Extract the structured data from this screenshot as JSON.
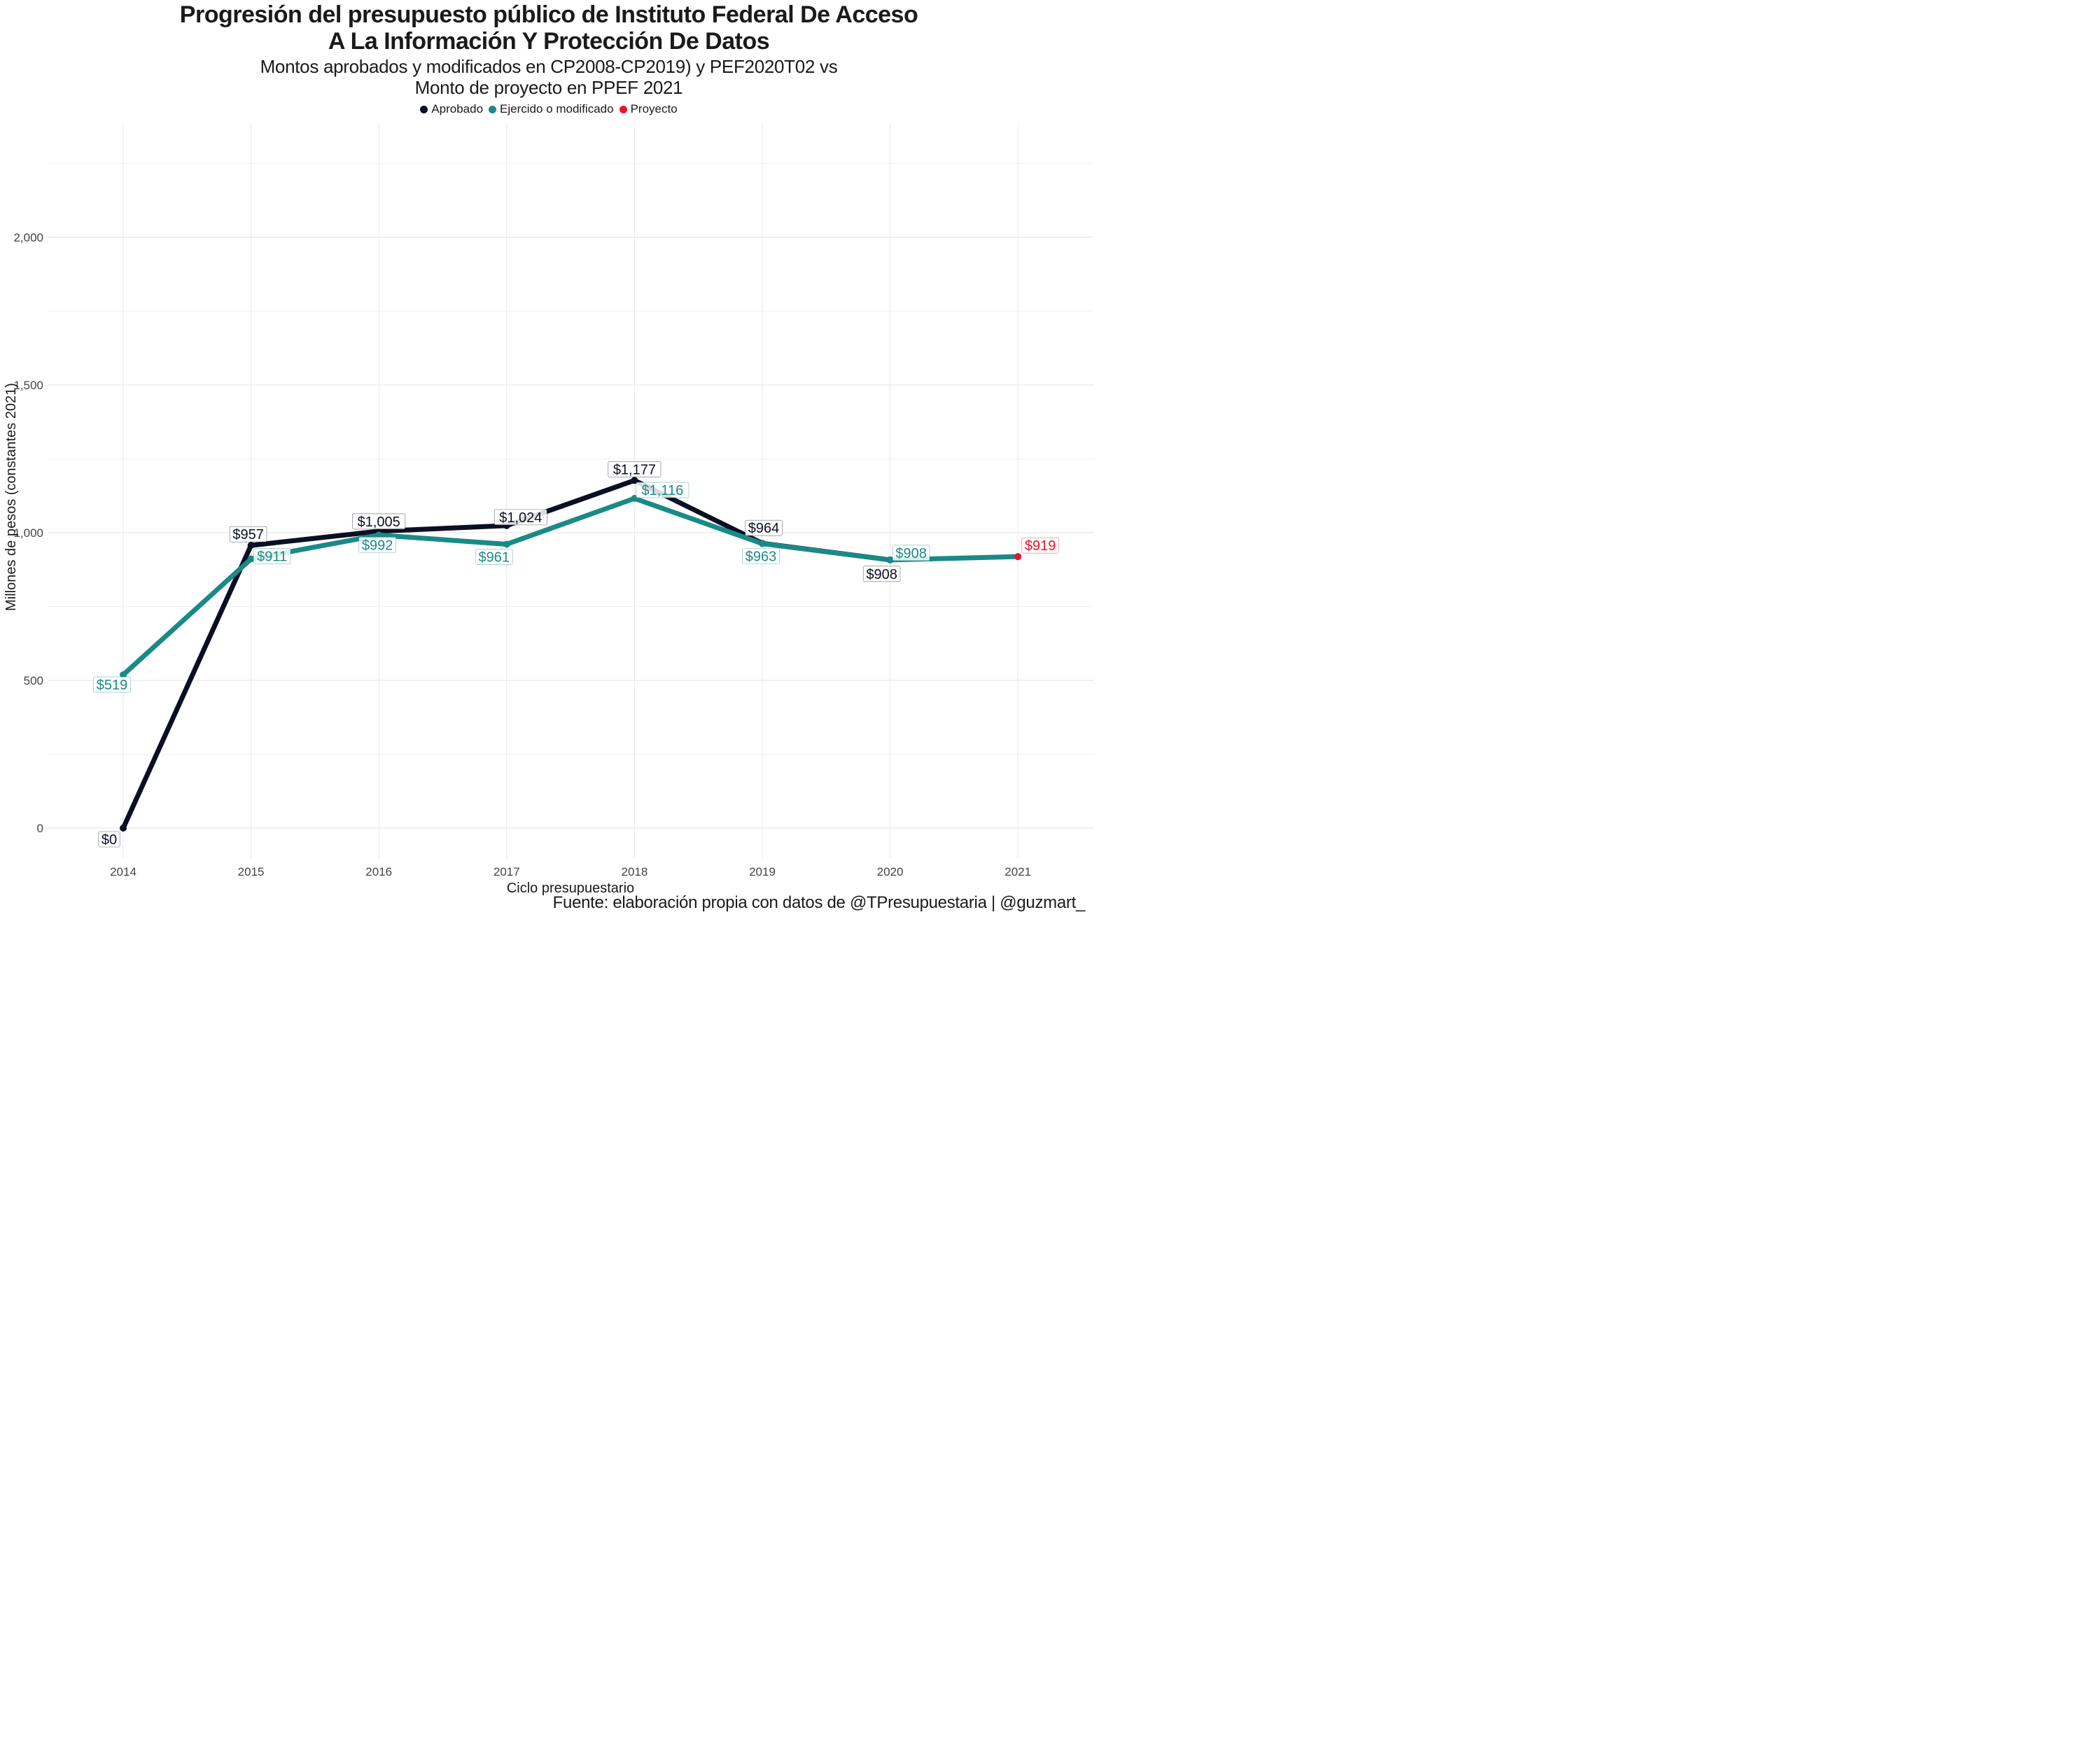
{
  "chart_data": {
    "type": "line",
    "title_line1": "Progresión del presupuesto público de Instituto Federal De Acceso",
    "title_line2": "A La Información Y Protección De Datos",
    "subtitle_line1": "Montos aprobados y modificados en CP2008-CP2019) y PEF2020T02 vs",
    "subtitle_line2": "Monto de proyecto en PPEF 2021",
    "xlabel": "Ciclo presupuestario",
    "ylabel": "Millones de pesos (constantes 2021)",
    "caption": "Fuente: elaboración propia con datos de @TPresupuestaria | @guzmart_",
    "categories": [
      "2014",
      "2015",
      "2016",
      "2017",
      "2018",
      "2019",
      "2020",
      "2021"
    ],
    "yticks": [
      0,
      500,
      1000,
      1500,
      2000
    ],
    "ytick_labels": [
      "0",
      "500",
      "1,000",
      "1,500",
      "2,000"
    ],
    "ylim": [
      -120,
      2250
    ],
    "grid": true,
    "legend_position": "top",
    "series": [
      {
        "name": "Aprobado",
        "color": "#0b0f24",
        "values": [
          0,
          957,
          1005,
          1024,
          1177,
          964,
          908,
          null
        ],
        "labels": [
          "$0",
          "$957",
          "$1,005",
          "$1,024",
          "$1,177",
          "$964",
          "$908",
          null
        ]
      },
      {
        "name": "Ejercido o modificado",
        "color": "#1a8a87",
        "values": [
          519,
          911,
          992,
          961,
          1116,
          963,
          908,
          919
        ],
        "labels": [
          "$519",
          "$911",
          "$992",
          "$961",
          "$1,116",
          "$963",
          "$908",
          null
        ]
      },
      {
        "name": "Proyecto",
        "color": "#e8132d",
        "values": [
          null,
          null,
          null,
          null,
          null,
          null,
          null,
          919
        ],
        "labels": [
          null,
          null,
          null,
          null,
          null,
          null,
          null,
          "$919"
        ]
      }
    ]
  }
}
